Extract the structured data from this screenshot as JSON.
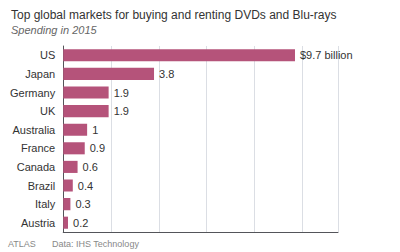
{
  "chart_data": {
    "type": "bar",
    "orientation": "horizontal",
    "title": "Top global markets for buying and renting DVDs and Blu-rays",
    "subtitle": "Spending in 2015",
    "categories": [
      "US",
      "Japan",
      "Germany",
      "UK",
      "Australia",
      "France",
      "Canada",
      "Brazil",
      "Italy",
      "Austria"
    ],
    "values": [
      9.7,
      3.8,
      1.9,
      1.9,
      1.0,
      0.9,
      0.6,
      0.4,
      0.3,
      0.2
    ],
    "value_labels": [
      "$9.7 billion",
      "3.8",
      "1.9",
      "1.9",
      "1",
      "0.9",
      "0.6",
      "0.4",
      "0.3",
      "0.2"
    ],
    "data_labels": true,
    "color": "#b5537a",
    "xlim": [
      0,
      11.5
    ],
    "xticks": [
      0,
      2,
      4,
      6,
      8,
      10
    ],
    "grid": true,
    "tick_labels": "y",
    "annotations": [
      "ATLAS",
      "Data: IHS Technology"
    ]
  }
}
